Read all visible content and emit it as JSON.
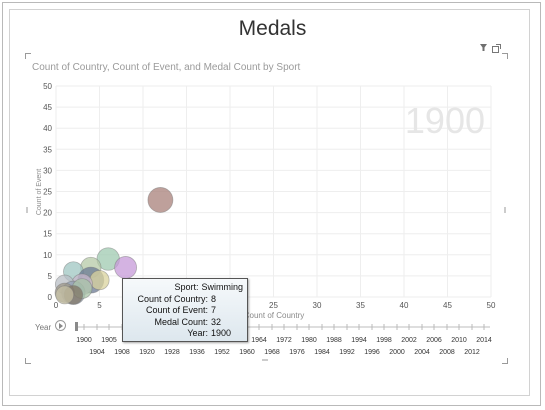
{
  "page": {
    "title": "Medals"
  },
  "icons": {
    "filter": "filter-icon",
    "popout": "popout-icon"
  },
  "chart_data": {
    "type": "scatter",
    "title": "Count of Country, Count of Event, and Medal Count by Sport",
    "xlabel": "Count of Country",
    "ylabel": "Count of Event",
    "xlim": [
      0,
      50
    ],
    "ylim": [
      0,
      50
    ],
    "xticks": [
      0,
      5,
      10,
      15,
      20,
      25,
      30,
      35,
      40,
      45,
      50
    ],
    "yticks": [
      0,
      5,
      10,
      15,
      20,
      25,
      30,
      35,
      40,
      45,
      50
    ],
    "grid": true,
    "watermark": "1900",
    "size_measure": "Medal Count",
    "points": [
      {
        "x": 12,
        "y": 23,
        "size": 45,
        "color": "#a8807a"
      },
      {
        "x": 6,
        "y": 9,
        "size": 34,
        "color": "#9fcab0"
      },
      {
        "x": 8,
        "y": 7,
        "size": 32,
        "color": "#c59ad8"
      },
      {
        "x": 4,
        "y": 7,
        "size": 26,
        "color": "#b5c9a7"
      },
      {
        "x": 2,
        "y": 6,
        "size": 24,
        "color": "#9fc6c1"
      },
      {
        "x": 4,
        "y": 4,
        "size": 50,
        "color": "#6b7a94"
      },
      {
        "x": 5,
        "y": 4,
        "size": 22,
        "color": "#d9d39e"
      },
      {
        "x": 3,
        "y": 3,
        "size": 28,
        "color": "#c7b7c9"
      },
      {
        "x": 1,
        "y": 3,
        "size": 20,
        "color": "#b9bfc6"
      },
      {
        "x": 2,
        "y": 1,
        "size": 38,
        "color": "#8f9db0"
      },
      {
        "x": 3,
        "y": 2,
        "size": 24,
        "color": "#a9c4a8"
      },
      {
        "x": 1,
        "y": 1,
        "size": 22,
        "color": "#9c9688"
      },
      {
        "x": 2,
        "y": 0.5,
        "size": 20,
        "color": "#807566"
      },
      {
        "x": 1,
        "y": 0.5,
        "size": 18,
        "color": "#c5c0a4"
      }
    ],
    "tooltip": [
      {
        "key": "Sport",
        "value": "Swimming"
      },
      {
        "key": "Count of Country",
        "value": "8"
      },
      {
        "key": "Count of Event",
        "value": "7"
      },
      {
        "key": "Medal Count",
        "value": "32"
      },
      {
        "key": "Year",
        "value": "1900"
      }
    ],
    "play_axis": {
      "label": "Year",
      "years_top": [
        "1900",
        "1905",
        "1912",
        "1924",
        "1932",
        "1948",
        "1956",
        "1964",
        "1972",
        "1980",
        "1988",
        "1994",
        "1998",
        "2002",
        "2006",
        "2010",
        "2014"
      ],
      "years_bottom": [
        "1904",
        "1908",
        "1920",
        "1928",
        "1936",
        "1952",
        "1960",
        "1968",
        "1976",
        "1984",
        "1992",
        "1996",
        "2000",
        "2004",
        "2008",
        "2012"
      ],
      "current": "1900"
    }
  }
}
